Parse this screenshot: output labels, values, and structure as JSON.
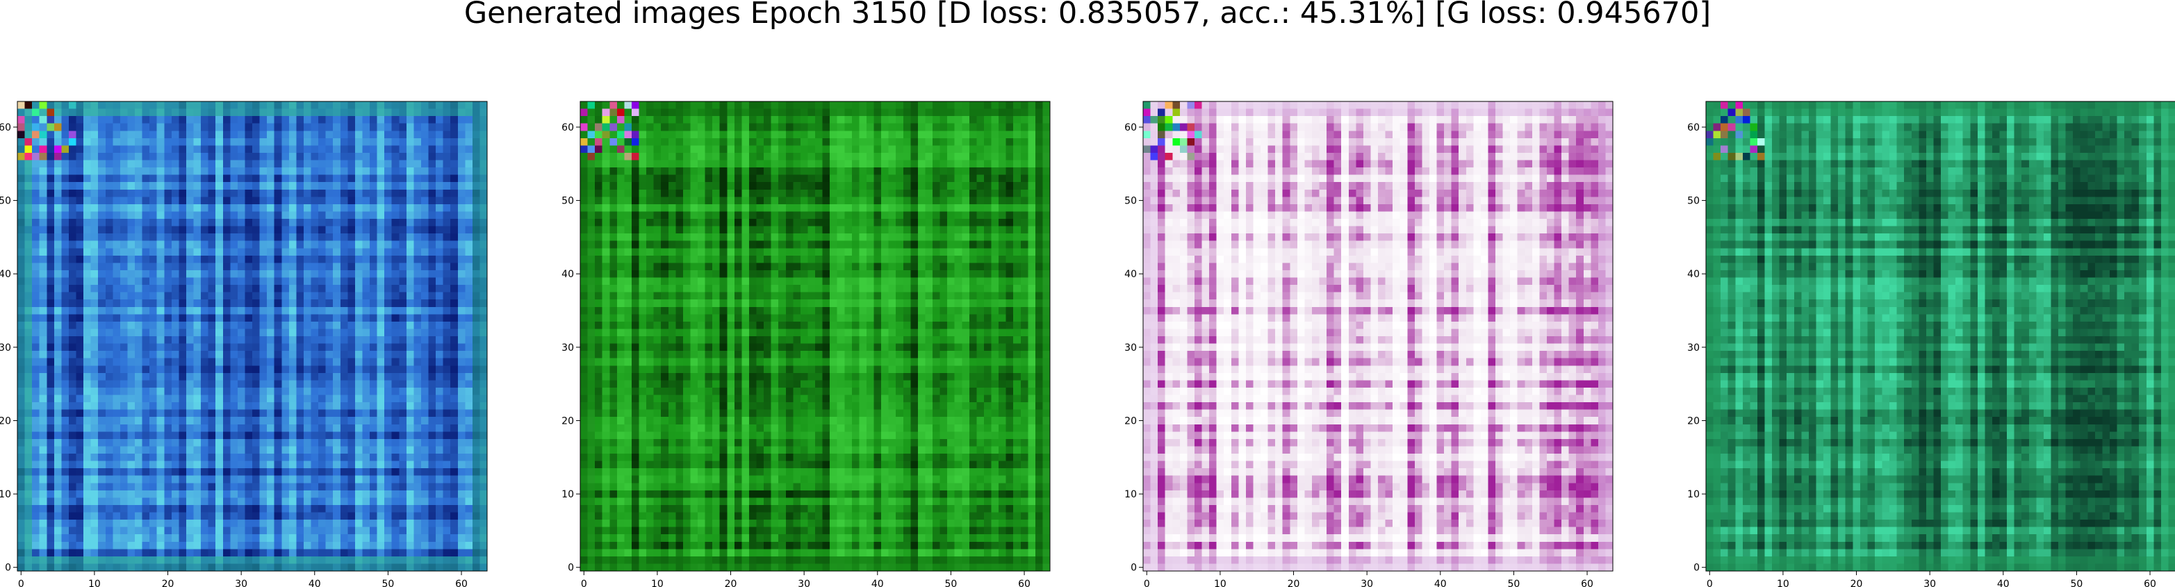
{
  "chart_data": {
    "title": "Generated images Epoch 3150 [D loss: 0.835057, acc.: 45.31%] [G loss: 0.945670]",
    "panels": [
      {
        "type": "heatmap",
        "x_ticks": [
          "0",
          "10",
          "20",
          "30",
          "40",
          "50",
          "60"
        ],
        "y_ticks": [
          "0",
          "10",
          "20",
          "30",
          "40",
          "50",
          "60"
        ],
        "xlim": [
          -0.5,
          63.5
        ],
        "ylim": [
          63.5,
          -0.5
        ],
        "grid": false,
        "palette": {
          "base": "#2f73d8",
          "light": "#5fd4e8",
          "dark": "#0a1f7a",
          "frame": "#1f9a8a"
        }
      },
      {
        "type": "heatmap",
        "x_ticks": [
          "0",
          "10",
          "20",
          "30",
          "40",
          "50",
          "60"
        ],
        "y_ticks": [
          "0",
          "10",
          "20",
          "30",
          "40",
          "50",
          "60"
        ],
        "xlim": [
          -0.5,
          63.5
        ],
        "ylim": [
          63.5,
          -0.5
        ],
        "grid": false,
        "palette": {
          "base": "#1a9a1a",
          "light": "#3ccc3c",
          "dark": "#053005",
          "frame": "#127a12"
        }
      },
      {
        "type": "heatmap",
        "x_ticks": [
          "0",
          "10",
          "20",
          "30",
          "40",
          "50",
          "60"
        ],
        "y_ticks": [
          "0",
          "10",
          "20",
          "30",
          "40",
          "50",
          "60"
        ],
        "xlim": [
          -0.5,
          63.5
        ],
        "ylim": [
          63.5,
          -0.5
        ],
        "grid": false,
        "palette": {
          "base": "#f1e6f1",
          "light": "#ffffff",
          "dark": "#a0209a",
          "frame": "#e0c0e8"
        }
      },
      {
        "type": "heatmap",
        "x_ticks": [
          "0",
          "10",
          "20",
          "30",
          "40",
          "50",
          "60"
        ],
        "y_ticks": [
          "0",
          "10",
          "20",
          "30",
          "40",
          "50",
          "60"
        ],
        "xlim": [
          -0.5,
          63.5
        ],
        "ylim": [
          63.5,
          -0.5
        ],
        "grid": false,
        "palette": {
          "base": "#1f8a58",
          "light": "#40d8a0",
          "dark": "#0a3a2a",
          "frame": "#23a060"
        }
      }
    ]
  }
}
